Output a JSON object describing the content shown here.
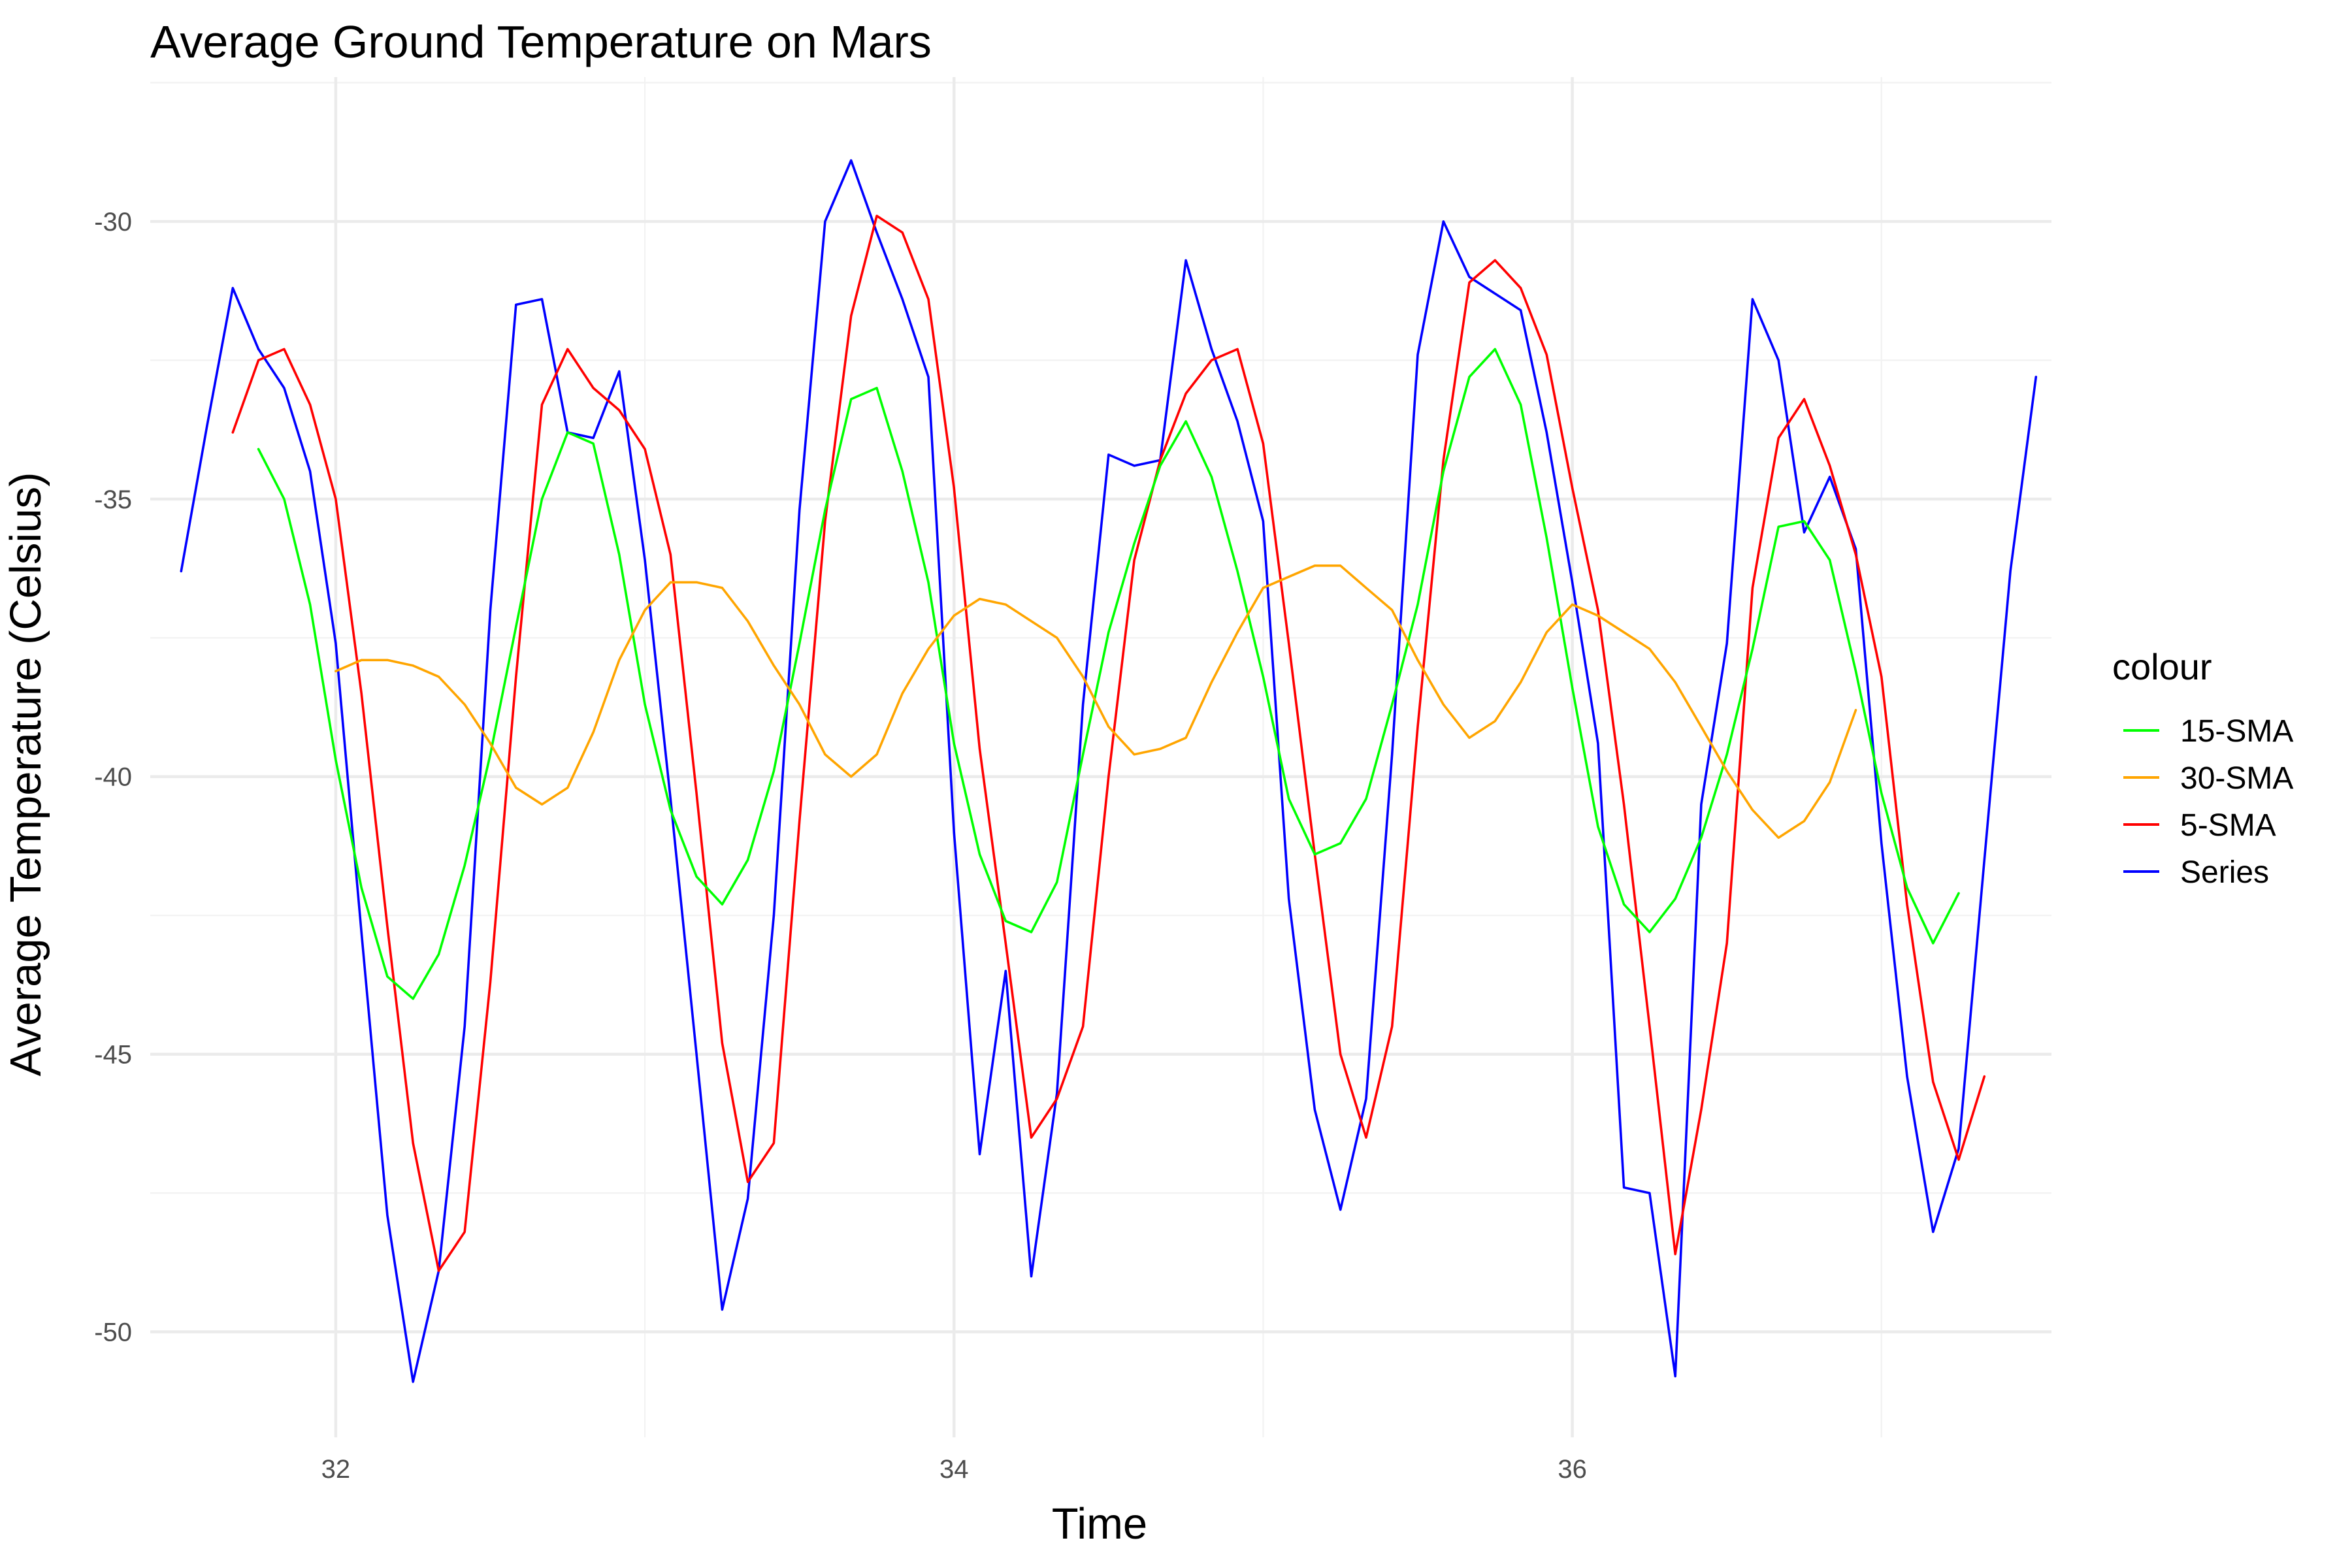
{
  "chart_data": {
    "type": "line",
    "title": "Average Ground Temperature on Mars",
    "xlabel": "Time",
    "ylabel": "Average Temperature (Celsius)",
    "xlim": [
      31.4,
      37.55
    ],
    "ylim": [
      -51.9,
      -27.4
    ],
    "x_ticks": [
      32,
      34,
      36
    ],
    "y_ticks": [
      -30,
      -35,
      -40,
      -45,
      -50
    ],
    "x_tick_labels": [
      "32",
      "34",
      "36"
    ],
    "y_tick_labels": [
      "-30",
      "-35",
      "-40",
      "-45",
      "-50"
    ],
    "grid": true,
    "legend": {
      "title": "colour",
      "position": "right",
      "entries": [
        "15-SMA",
        "30-SMA",
        "5-SMA",
        "Series"
      ]
    },
    "series": [
      {
        "name": "Series",
        "color": "#0000ff",
        "x": [
          31.5,
          31.583,
          31.667,
          31.75,
          31.833,
          31.917,
          32.0,
          32.083,
          32.167,
          32.25,
          32.333,
          32.417,
          32.5,
          32.583,
          32.667,
          32.75,
          32.833,
          32.917,
          33.0,
          33.083,
          33.167,
          33.25,
          33.333,
          33.417,
          33.5,
          33.583,
          33.667,
          33.75,
          33.833,
          33.917,
          34.0,
          34.083,
          34.167,
          34.25,
          34.333,
          34.417,
          34.5,
          34.583,
          34.667,
          34.75,
          34.833,
          34.917,
          35.0,
          35.083,
          35.167,
          35.25,
          35.333,
          35.417,
          35.5,
          35.583,
          35.667,
          35.75,
          35.833,
          35.917,
          36.0,
          36.083,
          36.167,
          36.25,
          36.333,
          36.417,
          36.5,
          36.583,
          36.667,
          36.75,
          36.833,
          36.917,
          37.0,
          37.083,
          37.167,
          37.25,
          37.333,
          37.417,
          37.5
        ],
        "values": [
          -36.3,
          -33.7,
          -31.2,
          -32.3,
          -33.0,
          -34.5,
          -37.6,
          -42.8,
          -47.9,
          -50.9,
          -48.9,
          -44.5,
          -37.0,
          -31.5,
          -31.4,
          -33.8,
          -33.9,
          -32.7,
          -36.1,
          -40.4,
          -45.0,
          -49.6,
          -47.6,
          -42.5,
          -35.2,
          -30.0,
          -28.9,
          -30.2,
          -31.4,
          -32.8,
          -41.0,
          -46.8,
          -43.5,
          -49.0,
          -45.7,
          -38.7,
          -34.2,
          -34.4,
          -34.3,
          -30.7,
          -32.3,
          -33.6,
          -35.4,
          -42.2,
          -46.0,
          -47.8,
          -45.8,
          -39.6,
          -32.4,
          -30.0,
          -31.0,
          -31.3,
          -31.6,
          -33.8,
          -36.5,
          -39.4,
          -47.4,
          -47.5,
          -50.8,
          -40.5,
          -37.6,
          -31.4,
          -32.5,
          -35.6,
          -34.6,
          -35.9,
          -41.2,
          -45.4,
          -48.2,
          -46.7,
          -41.5,
          -36.3,
          -32.8
        ]
      },
      {
        "name": "5-SMA",
        "color": "#ff0000",
        "x": [
          31.667,
          31.75,
          31.833,
          31.917,
          32.0,
          32.083,
          32.167,
          32.25,
          32.333,
          32.417,
          32.5,
          32.583,
          32.667,
          32.75,
          32.833,
          32.917,
          33.0,
          33.083,
          33.167,
          33.25,
          33.333,
          33.417,
          33.5,
          33.583,
          33.667,
          33.75,
          33.833,
          33.917,
          34.0,
          34.083,
          34.167,
          34.25,
          34.333,
          34.417,
          34.5,
          34.583,
          34.667,
          34.75,
          34.833,
          34.917,
          35.0,
          35.083,
          35.167,
          35.25,
          35.333,
          35.417,
          35.5,
          35.583,
          35.667,
          35.75,
          35.833,
          35.917,
          36.0,
          36.083,
          36.167,
          36.25,
          36.333,
          36.417,
          36.5,
          36.583,
          36.667,
          36.75,
          36.833,
          36.917,
          37.0,
          37.083,
          37.167,
          37.25,
          37.333
        ],
        "values": [
          -33.8,
          -32.5,
          -32.3,
          -33.3,
          -35.0,
          -38.5,
          -42.7,
          -46.6,
          -48.9,
          -48.2,
          -43.7,
          -38.2,
          -33.3,
          -32.3,
          -33.0,
          -33.4,
          -34.1,
          -36.0,
          -40.3,
          -44.8,
          -47.3,
          -46.6,
          -40.8,
          -35.4,
          -31.7,
          -29.9,
          -30.2,
          -31.4,
          -34.8,
          -39.5,
          -43.0,
          -46.5,
          -45.8,
          -44.5,
          -40.0,
          -36.1,
          -34.3,
          -33.1,
          -32.5,
          -32.3,
          -34.0,
          -37.6,
          -41.4,
          -45.0,
          -46.5,
          -44.5,
          -39.1,
          -34.3,
          -31.1,
          -30.7,
          -31.2,
          -32.4,
          -34.8,
          -37.0,
          -40.5,
          -44.5,
          -48.6,
          -46.0,
          -43.0,
          -36.6,
          -33.9,
          -33.2,
          -34.4,
          -36.0,
          -38.2,
          -42.3,
          -45.5,
          -46.9,
          -45.4
        ],
        "extra": [
          -37.0
        ]
      },
      {
        "name": "15-SMA",
        "color": "#00ff00",
        "x": [
          31.75,
          31.833,
          31.917,
          32.0,
          32.083,
          32.167,
          32.25,
          32.333,
          32.417,
          32.5,
          32.583,
          32.667,
          32.75,
          32.833,
          32.917,
          33.0,
          33.083,
          33.167,
          33.25,
          33.333,
          33.417,
          33.5,
          33.583,
          33.667,
          33.75,
          33.833,
          33.917,
          34.0,
          34.083,
          34.167,
          34.25,
          34.333,
          34.417,
          34.5,
          34.583,
          34.667,
          34.75,
          34.833,
          34.917,
          35.0,
          35.083,
          35.167,
          35.25,
          35.333,
          35.417,
          35.5,
          35.583,
          35.667,
          35.75,
          35.833,
          35.917,
          36.0,
          36.083,
          36.167,
          36.25,
          36.333,
          36.417,
          36.5,
          36.583,
          36.667,
          36.75,
          36.833,
          36.917,
          37.0,
          37.083,
          37.167,
          37.25
        ],
        "values": [
          -34.1,
          -35.0,
          -36.9,
          -39.7,
          -42.0,
          -43.6,
          -44.0,
          -43.2,
          -41.6,
          -39.6,
          -37.3,
          -35.0,
          -33.8,
          -34.0,
          -36.0,
          -38.7,
          -40.6,
          -41.8,
          -42.3,
          -41.5,
          -39.9,
          -37.6,
          -35.2,
          -33.2,
          -33.0,
          -34.5,
          -36.5,
          -39.4,
          -41.4,
          -42.6,
          -42.8,
          -41.9,
          -39.6,
          -37.4,
          -35.8,
          -34.4,
          -33.6,
          -34.6,
          -36.3,
          -38.2,
          -40.4,
          -41.4,
          -41.2,
          -40.4,
          -38.7,
          -36.9,
          -34.5,
          -32.8,
          -32.3,
          -33.3,
          -35.7,
          -38.4,
          -40.9,
          -42.3,
          -42.8,
          -42.2,
          -41.1,
          -39.6,
          -37.7,
          -35.5,
          -35.4,
          -36.1,
          -38.1,
          -40.3,
          -42.0,
          -43.0,
          -42.1
        ]
      },
      {
        "name": "30-SMA",
        "color": "#ffa500",
        "x": [
          32.0,
          32.083,
          32.167,
          32.25,
          32.333,
          32.417,
          32.5,
          32.583,
          32.667,
          32.75,
          32.833,
          32.917,
          33.0,
          33.083,
          33.167,
          33.25,
          33.333,
          33.417,
          33.5,
          33.583,
          33.667,
          33.75,
          33.833,
          33.917,
          34.0,
          34.083,
          34.167,
          34.25,
          34.333,
          34.417,
          34.5,
          34.583,
          34.667,
          34.75,
          34.833,
          34.917,
          35.0,
          35.083,
          35.167,
          35.25,
          35.333,
          35.417,
          35.5,
          35.583,
          35.667,
          35.75,
          35.833,
          35.917,
          36.0,
          36.083,
          36.167,
          36.25,
          36.333,
          36.417,
          36.5,
          36.583,
          36.667,
          36.75,
          36.833,
          36.917
        ],
        "values": [
          -38.1,
          -37.9,
          -37.9,
          -38.0,
          -38.2,
          -38.7,
          -39.4,
          -40.2,
          -40.5,
          -40.2,
          -39.2,
          -37.9,
          -37.0,
          -36.5,
          -36.5,
          -36.6,
          -37.2,
          -38.0,
          -38.7,
          -39.6,
          -40.0,
          -39.6,
          -38.5,
          -37.7,
          -37.1,
          -36.8,
          -36.9,
          -37.2,
          -37.5,
          -38.2,
          -39.1,
          -39.6,
          -39.5,
          -39.3,
          -38.3,
          -37.4,
          -36.6,
          -36.4,
          -36.2,
          -36.2,
          -36.6,
          -37.0,
          -37.9,
          -38.7,
          -39.3,
          -39.0,
          -38.3,
          -37.4,
          -36.9,
          -37.1,
          -37.4,
          -37.7,
          -38.3,
          -39.1,
          -39.9,
          -40.6,
          -41.1,
          -40.8,
          -40.1,
          -38.8
        ]
      }
    ]
  }
}
